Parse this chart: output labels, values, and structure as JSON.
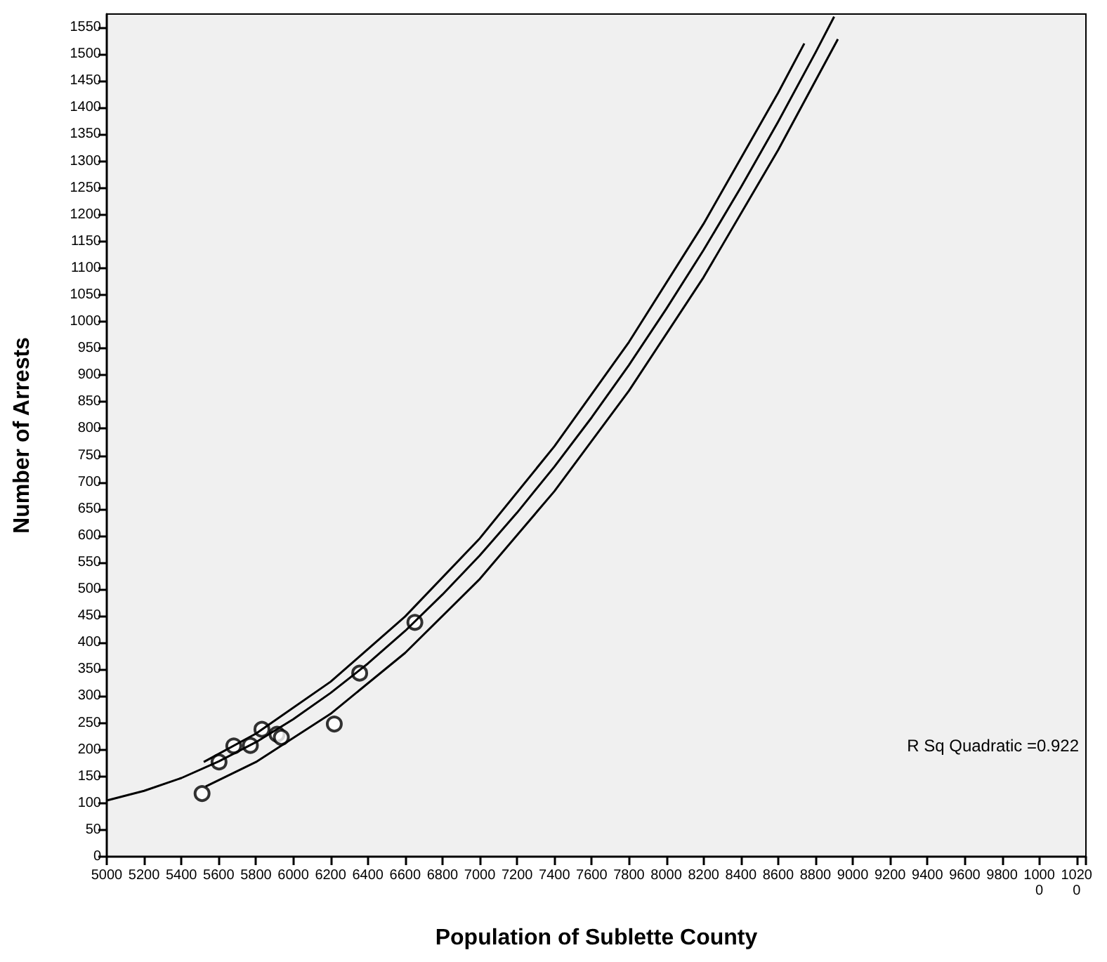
{
  "chart_data": {
    "type": "scatter",
    "xlabel": "Population of Sublette County",
    "ylabel": "Number of Arrests",
    "annotations": [
      "R Sq Quadratic =0.922"
    ],
    "xlim": [
      5000,
      10250
    ],
    "xticks": [
      5000,
      5200,
      5400,
      5600,
      5800,
      6000,
      6200,
      6400,
      6600,
      6800,
      7000,
      7200,
      7400,
      7600,
      7800,
      8000,
      8200,
      8400,
      8600,
      8800,
      9000,
      9200,
      9400,
      9600,
      9800,
      10000,
      10200
    ],
    "ylim": [
      0,
      1575
    ],
    "yticks": [
      0,
      50,
      100,
      150,
      200,
      250,
      300,
      350,
      400,
      450,
      500,
      550,
      600,
      650,
      700,
      750,
      800,
      850,
      900,
      950,
      1000,
      1050,
      1100,
      1150,
      1200,
      1250,
      1300,
      1350,
      1400,
      1450,
      1500,
      1550
    ],
    "grid": false,
    "series": [
      {
        "marker": "circle",
        "color": "#000000",
        "x": [
          5511,
          5602,
          5681,
          5770,
          5832,
          5913,
          5936,
          6220,
          6356,
          6652
        ],
        "values": [
          118,
          177,
          207,
          208,
          238,
          229,
          223,
          248,
          343,
          438
        ]
      },
      {
        "type": "line",
        "color": "#000000",
        "line_style": "solid",
        "x": [
          5000,
          5200,
          5400,
          5600,
          5800,
          6000,
          6200,
          6400,
          6600,
          6800,
          7000,
          7200,
          7400,
          7600,
          7800,
          8000,
          8200,
          8400,
          8600,
          8800,
          8900
        ],
        "values": [
          105,
          123,
          147,
          178,
          214,
          257,
          306,
          361,
          422,
          490,
          563,
          643,
          729,
          821,
          919,
          1024,
          1134,
          1251,
          1374,
          1503,
          1570
        ]
      },
      {
        "type": "line",
        "color": "#000000",
        "line_style": "solid",
        "x": [
          5520,
          5800,
          6200,
          6600,
          7000,
          7400,
          7800,
          8200,
          8600,
          8740
        ],
        "values": [
          177,
          230,
          327,
          449,
          595,
          767,
          962,
          1183,
          1428,
          1520
        ]
      },
      {
        "type": "line",
        "color": "#000000",
        "line_style": "solid",
        "x": [
          5530,
          5800,
          6200,
          6600,
          7000,
          7400,
          7800,
          8200,
          8600,
          8920
        ],
        "values": [
          131,
          177,
          267,
          381,
          519,
          683,
          871,
          1083,
          1321,
          1528
        ]
      }
    ]
  }
}
